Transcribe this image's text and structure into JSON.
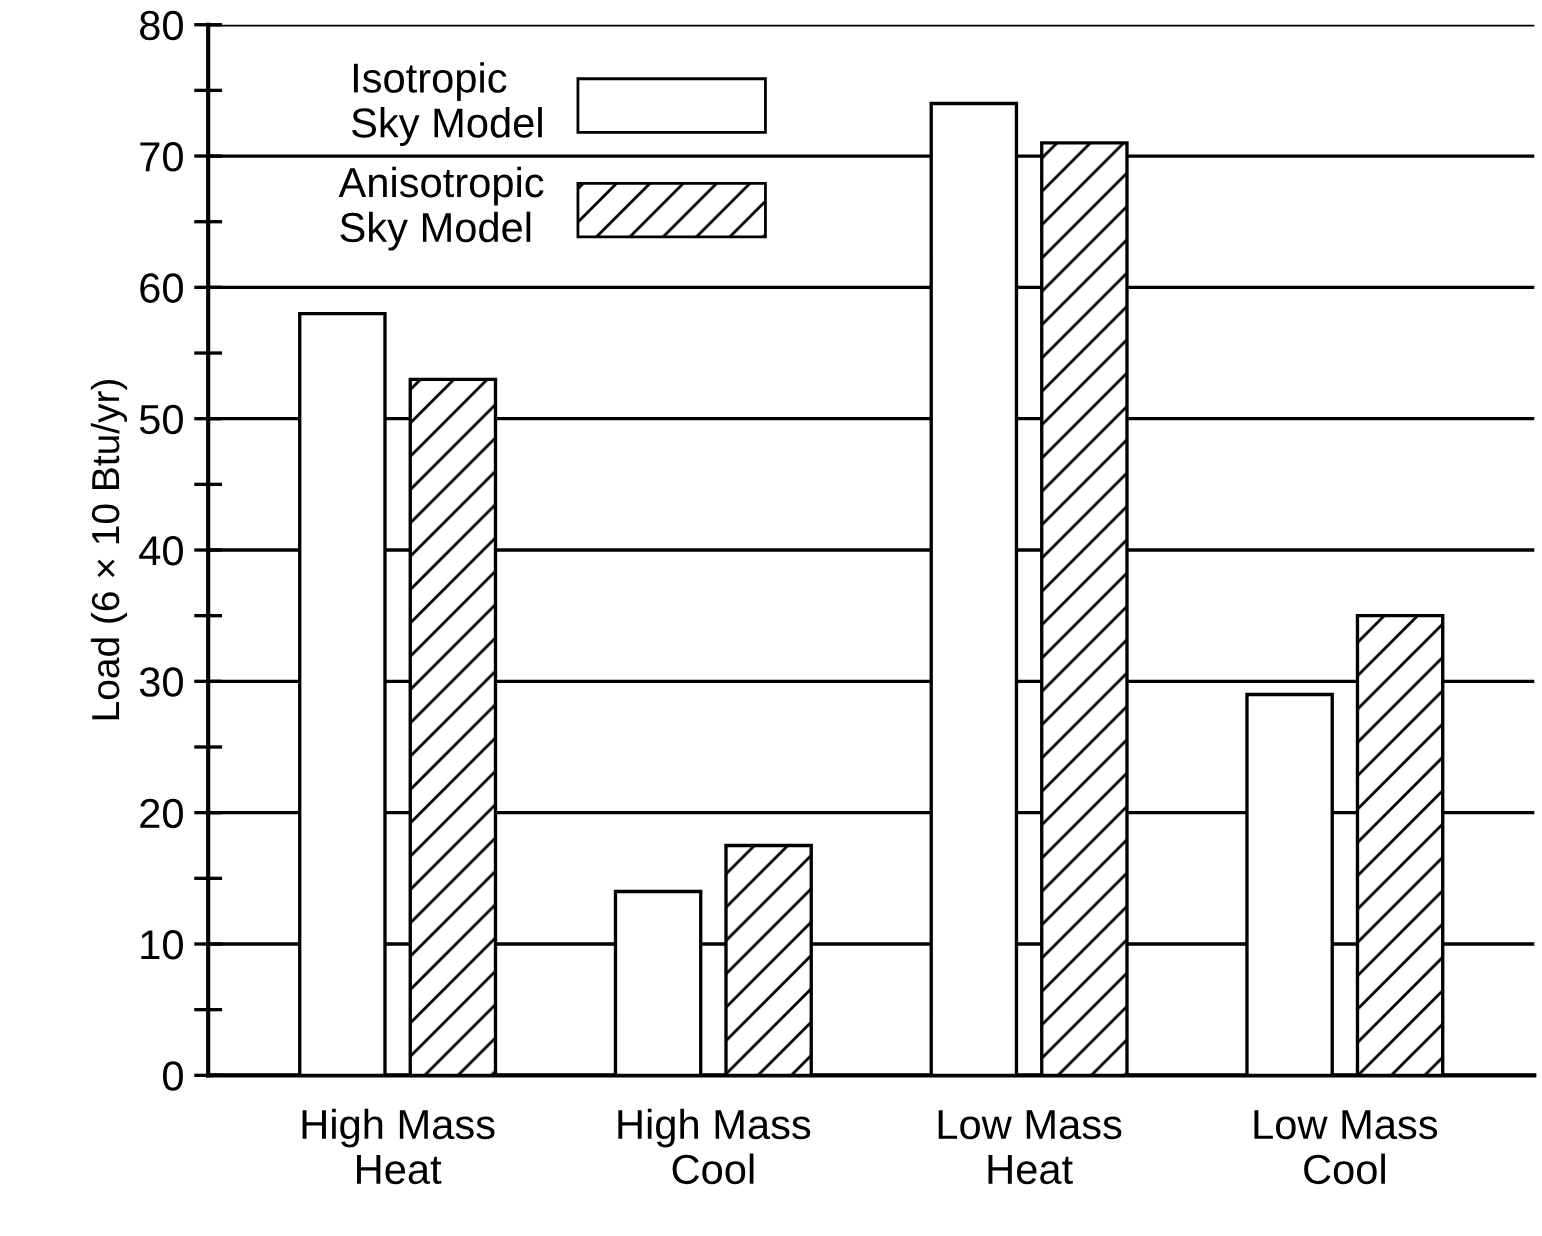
{
  "chart_data": {
    "type": "bar",
    "ylabel": "Load (6 × 10 Btu/yr)",
    "categories": [
      "High Mass\nHeat",
      "High Mass\nCool",
      "Low Mass\nHeat",
      "Low Mass\nCool"
    ],
    "series": [
      {
        "name": "Isotropic\nSky Model",
        "color": "#ffffff",
        "values": [
          58,
          14,
          74,
          29
        ]
      },
      {
        "name": "Anisotropic\nSky Model",
        "color": "#000000",
        "values": [
          53,
          17.5,
          71,
          35
        ]
      }
    ],
    "ylim": [
      0,
      80
    ],
    "yticks": [
      0,
      {
        "value": 5,
        "label": null
      },
      10,
      {
        "value": 15,
        "label": null
      },
      20,
      {
        "value": 25,
        "label": null
      },
      30,
      {
        "value": 35,
        "label": null
      },
      40,
      {
        "value": 45,
        "label": null
      },
      50,
      {
        "value": 55,
        "label": null
      },
      60,
      {
        "value": 65,
        "label": null
      },
      70,
      {
        "value": 75,
        "label": null
      },
      80
    ],
    "grid": "y",
    "legend": "top left"
  }
}
